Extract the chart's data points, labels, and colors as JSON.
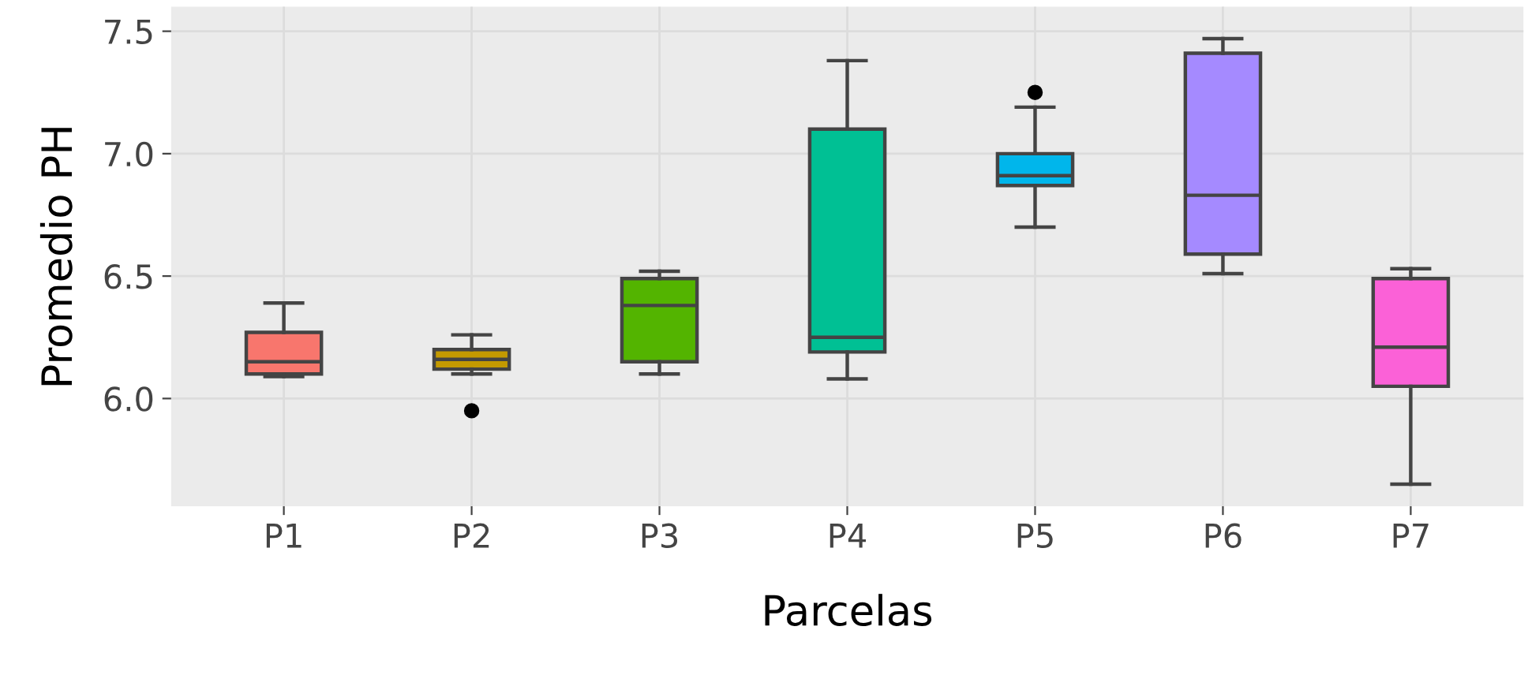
{
  "chart_data": {
    "type": "box",
    "xlabel": "Parcelas",
    "ylabel": "Promedio PH",
    "categories": [
      "P1",
      "P2",
      "P3",
      "P4",
      "P5",
      "P6",
      "P7"
    ],
    "colors": [
      "#f8766d",
      "#c49a00",
      "#53b400",
      "#00c094",
      "#00b6eb",
      "#a58aff",
      "#fb61d7"
    ],
    "boxes": [
      {
        "low": 6.09,
        "q1": 6.1,
        "median": 6.15,
        "q3": 6.27,
        "high": 6.39
      },
      {
        "low": 6.1,
        "q1": 6.12,
        "median": 6.16,
        "q3": 6.2,
        "high": 6.26,
        "outliers": [
          5.95
        ]
      },
      {
        "low": 6.1,
        "q1": 6.15,
        "median": 6.38,
        "q3": 6.49,
        "high": 6.52
      },
      {
        "low": 6.08,
        "q1": 6.19,
        "median": 6.25,
        "q3": 7.1,
        "high": 7.38
      },
      {
        "low": 6.7,
        "q1": 6.87,
        "median": 6.91,
        "q3": 7.0,
        "high": 7.19,
        "outliers": [
          7.25
        ]
      },
      {
        "low": 6.51,
        "q1": 6.59,
        "median": 6.83,
        "q3": 7.41,
        "high": 7.47
      },
      {
        "low": 5.65,
        "q1": 6.05,
        "median": 6.21,
        "q3": 6.49,
        "high": 6.53
      }
    ],
    "ylim": [
      5.56,
      7.6
    ],
    "yticks": [
      {
        "value": 6,
        "label": "6.0"
      },
      {
        "value": 6.5,
        "label": "6.5"
      },
      {
        "value": 7,
        "label": "7.0"
      },
      {
        "value": 7.5,
        "label": "7.5"
      }
    ],
    "grid": true
  }
}
